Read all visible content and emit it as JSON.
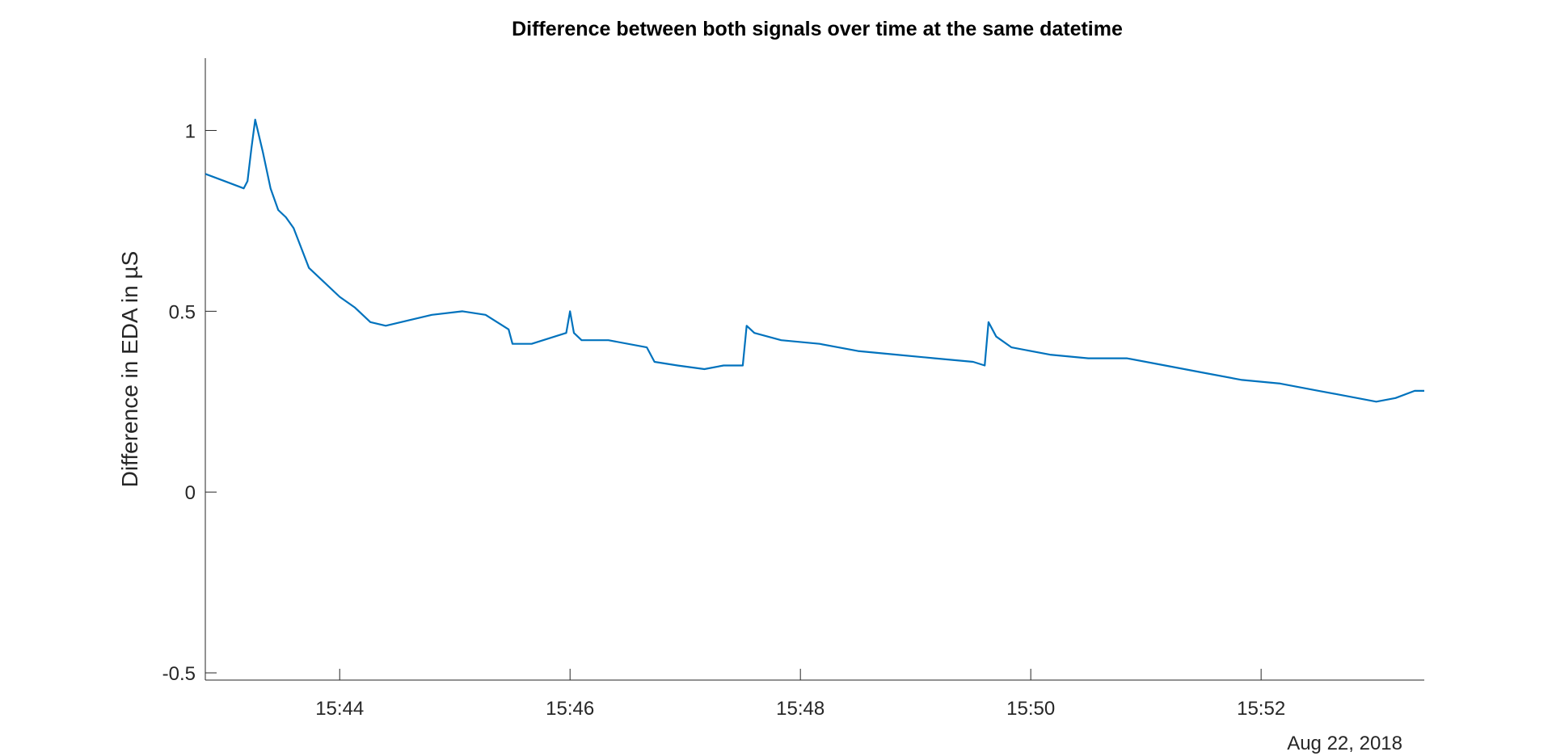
{
  "chart_data": {
    "type": "line",
    "title": "Difference between both signals over time at the same datetime",
    "xlabel": "",
    "ylabel": "Difference in EDA in µS",
    "date_label": "Aug 22, 2018",
    "x_unit": "time (HH:MM)",
    "xlim": [
      "15:42:50",
      "15:53:25"
    ],
    "ylim": [
      -0.52,
      1.2
    ],
    "x_ticks": [
      "15:44",
      "15:46",
      "15:48",
      "15:50",
      "15:52"
    ],
    "y_ticks": [
      {
        "value": -0.5,
        "label": "-0.5"
      },
      {
        "value": 0,
        "label": "0"
      },
      {
        "value": 0.5,
        "label": "0.5"
      },
      {
        "value": 1,
        "label": "1"
      }
    ],
    "grid": false,
    "line_color": "#0072BD",
    "axis_color": "#262626",
    "series": [
      {
        "x": [
          "15:42:50",
          "15:43:00",
          "15:43:10",
          "15:43:12",
          "15:43:14",
          "15:43:16",
          "15:43:20",
          "15:43:24",
          "15:43:28",
          "15:43:32",
          "15:43:36",
          "15:43:44",
          "15:43:52",
          "15:44:00",
          "15:44:08",
          "15:44:16",
          "15:44:24",
          "15:44:32",
          "15:44:48",
          "15:45:04",
          "15:45:16",
          "15:45:28",
          "15:45:30",
          "15:45:40",
          "15:45:52",
          "15:45:58",
          "15:46:00",
          "15:46:02",
          "15:46:06",
          "15:46:20",
          "15:46:40",
          "15:46:44",
          "15:46:56",
          "15:47:10",
          "15:47:20",
          "15:47:30",
          "15:47:32",
          "15:47:36",
          "15:47:50",
          "15:48:10",
          "15:48:30",
          "15:48:50",
          "15:49:10",
          "15:49:30",
          "15:49:36",
          "15:49:38",
          "15:49:42",
          "15:49:50",
          "15:50:10",
          "15:50:30",
          "15:50:50",
          "15:51:10",
          "15:51:30",
          "15:51:50",
          "15:52:10",
          "15:52:30",
          "15:52:40",
          "15:52:50",
          "15:53:00",
          "15:53:10",
          "15:53:20",
          "15:53:25"
        ],
        "y": [
          0.88,
          0.86,
          0.84,
          0.86,
          0.95,
          1.03,
          0.94,
          0.84,
          0.78,
          0.76,
          0.73,
          0.62,
          0.58,
          0.54,
          0.51,
          0.47,
          0.46,
          0.47,
          0.49,
          0.5,
          0.49,
          0.45,
          0.41,
          0.41,
          0.43,
          0.44,
          0.5,
          0.44,
          0.42,
          0.42,
          0.4,
          0.36,
          0.35,
          0.34,
          0.35,
          0.35,
          0.46,
          0.44,
          0.42,
          0.41,
          0.39,
          0.38,
          0.37,
          0.36,
          0.35,
          0.47,
          0.43,
          0.4,
          0.38,
          0.37,
          0.37,
          0.35,
          0.33,
          0.31,
          0.3,
          0.28,
          0.27,
          0.26,
          0.25,
          0.26,
          0.28,
          0.28
        ]
      }
    ]
  }
}
